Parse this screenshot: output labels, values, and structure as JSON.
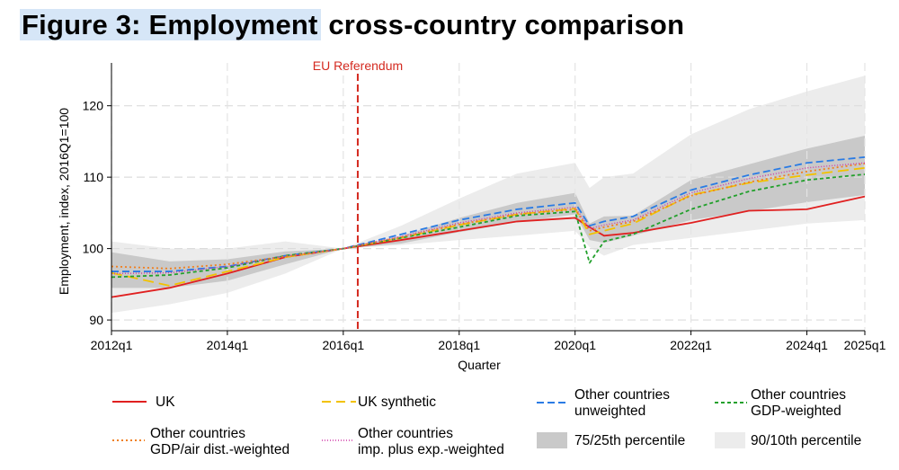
{
  "title": {
    "highlight": "Figure 3: Employment",
    "rest": " cross-country comparison"
  },
  "chart_data": {
    "type": "line",
    "title": "Figure 3: Employment cross-country comparison",
    "xlabel": "Quarter",
    "ylabel": "Employment, index, 2016Q1=100",
    "xlim": [
      "2012q1",
      "2025q1"
    ],
    "ylim": [
      88.5,
      126
    ],
    "y_ticks": [
      90,
      100,
      110,
      120
    ],
    "x_ticks": [
      "2012q1",
      "2014q1",
      "2016q1",
      "2018q1",
      "2020q1",
      "2022q1",
      "2024q1",
      "2025q1"
    ],
    "grid": true,
    "legend_position": "bottom",
    "annotation": {
      "label": "EU Referendum",
      "x": "2016q2",
      "color": "#d42a20"
    },
    "x": [
      "2012q1",
      "2013q1",
      "2014q1",
      "2015q1",
      "2016q1",
      "2017q1",
      "2018q1",
      "2019q1",
      "2020q1",
      "2020q2",
      "2020q3",
      "2021q1",
      "2022q1",
      "2023q1",
      "2024q1",
      "2025q1"
    ],
    "bands": [
      {
        "name": "90/10th percentile",
        "color": "#ececec",
        "lower": [
          91.0,
          92.2,
          93.8,
          96.5,
          100.0,
          100.5,
          101.2,
          101.8,
          102.5,
          100.2,
          99.0,
          100.5,
          101.5,
          102.5,
          103.5,
          104.0
        ],
        "upper": [
          101.0,
          100.0,
          100.0,
          101.0,
          100.0,
          103.2,
          107.0,
          110.5,
          112.0,
          108.5,
          110.0,
          110.5,
          116.0,
          119.5,
          122.0,
          124.2
        ]
      },
      {
        "name": "75/25th percentile",
        "color": "#c9c9c9",
        "lower": [
          94.5,
          94.5,
          95.5,
          97.8,
          100.0,
          100.7,
          102.3,
          103.7,
          104.8,
          101.2,
          100.8,
          101.8,
          104.0,
          105.2,
          106.5,
          107.5
        ],
        "upper": [
          99.5,
          98.2,
          98.5,
          99.6,
          100.0,
          101.8,
          104.3,
          106.4,
          107.8,
          103.5,
          104.5,
          104.6,
          109.6,
          111.8,
          114.0,
          115.8
        ]
      }
    ],
    "series": [
      {
        "name": "UK",
        "color": "#e02020",
        "dash": "solid",
        "values": [
          93.2,
          94.5,
          96.5,
          98.8,
          100.0,
          101.2,
          102.5,
          103.8,
          104.3,
          103.0,
          101.8,
          102.2,
          103.6,
          105.3,
          105.5,
          107.3
        ]
      },
      {
        "name": "UK synthetic",
        "color": "#f2c200",
        "dash": "longdash",
        "values": [
          96.6,
          94.8,
          96.8,
          98.8,
          100.0,
          101.5,
          103.3,
          104.8,
          105.6,
          102.0,
          102.5,
          103.5,
          107.5,
          109.2,
          110.3,
          111.3
        ]
      },
      {
        "name": "Other countries unweighted",
        "color": "#2a7be4",
        "dash": "dash",
        "values": [
          96.8,
          96.8,
          97.5,
          99.0,
          100.0,
          102.0,
          104.0,
          105.5,
          106.4,
          103.2,
          103.8,
          104.5,
          108.2,
          110.3,
          112.0,
          112.8
        ]
      },
      {
        "name": "Other countries GDP-weighted",
        "color": "#22a02c",
        "dash": "shortdash",
        "values": [
          96.0,
          96.3,
          97.3,
          99.0,
          100.0,
          101.5,
          103.0,
          104.6,
          105.2,
          98.0,
          101.0,
          102.0,
          105.5,
          108.0,
          109.6,
          110.4
        ]
      },
      {
        "name": "Other countries GDP/air dist.-weighted",
        "color": "#f08020",
        "dash": "dot",
        "values": [
          97.5,
          97.2,
          97.8,
          98.9,
          100.0,
          101.6,
          103.4,
          104.8,
          105.5,
          102.5,
          103.0,
          103.8,
          107.4,
          109.3,
          110.8,
          111.9
        ]
      },
      {
        "name": "Other countries imp. plus exp.-weighted",
        "color": "#d13aa8",
        "dash": "finedot",
        "values": [
          96.5,
          96.6,
          97.5,
          98.9,
          100.0,
          101.7,
          103.6,
          105.0,
          105.8,
          102.8,
          103.3,
          104.0,
          107.8,
          109.8,
          111.3,
          112.0
        ]
      }
    ]
  },
  "legend": {
    "uk": "UK",
    "uk_synthetic": "UK synthetic",
    "unweighted_1": "Other countries",
    "unweighted_2": "unweighted",
    "gdp_1": "Other countries",
    "gdp_2": "GDP-weighted",
    "gdpair_1": "Other countries",
    "gdpair_2": "GDP/air dist.-weighted",
    "impexp_1": "Other countries",
    "impexp_2": "imp. plus exp.-weighted",
    "p7525": "75/25th percentile",
    "p9010": "90/10th percentile"
  }
}
